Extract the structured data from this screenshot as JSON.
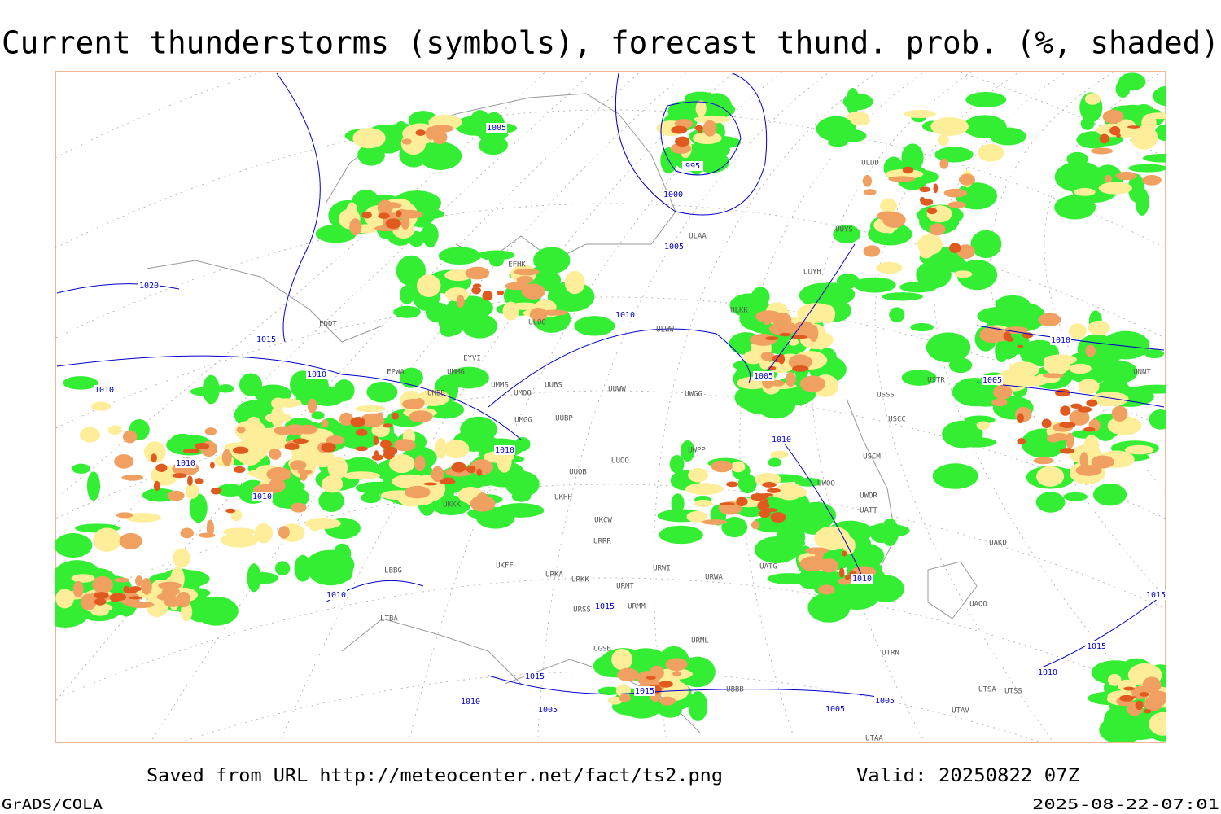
{
  "title": "Current thunderstorms (symbols), forecast thund. prob. (%, shaded)",
  "footer": {
    "source": "Saved from URL http://meteocenter.net/fact/ts2.png",
    "valid": "Valid: 20250822 07Z",
    "credit": "GrADS/COLA",
    "timestamp": "2025-08-22-07:01"
  },
  "isobars": [
    "1005",
    "995",
    "1000",
    "1005",
    "1020",
    "1015",
    "1010",
    "1010",
    "1010",
    "1005",
    "1010",
    "1010",
    "1010",
    "1010",
    "1010",
    "1005",
    "1010",
    "1010",
    "1015",
    "1015",
    "1015",
    "1010",
    "1005",
    "1005",
    "1005",
    "1015",
    "1015",
    "1010"
  ],
  "stations": [
    "ULAA",
    "UUYS",
    "ULDD",
    "UUYH",
    "ULKK",
    "ULWW",
    "EDDT",
    "EFHK",
    "ULOO",
    "EPWA",
    "EYVI",
    "UMMG",
    "UMMS",
    "UMOO",
    "UUBS",
    "UUWW",
    "UMBB",
    "UMGG",
    "UUBP",
    "UUOO",
    "UUOB",
    "UKHH",
    "UKKK",
    "UKCW",
    "URRR",
    "UKFF",
    "URKA",
    "URKK",
    "URMT",
    "URMM",
    "URSS",
    "UWGG",
    "UWPP",
    "USSS",
    "USCC",
    "USCM",
    "UWOO",
    "UWOR",
    "USTR",
    "UNNT",
    "UATT",
    "UATG",
    "URWA",
    "URWI",
    "UAKD",
    "UAOO",
    "LBBG",
    "LTBA",
    "UGSB",
    "URML",
    "UTRN",
    "UTSA",
    "UTSS",
    "UTAV",
    "UTAA",
    "UBBB"
  ]
}
